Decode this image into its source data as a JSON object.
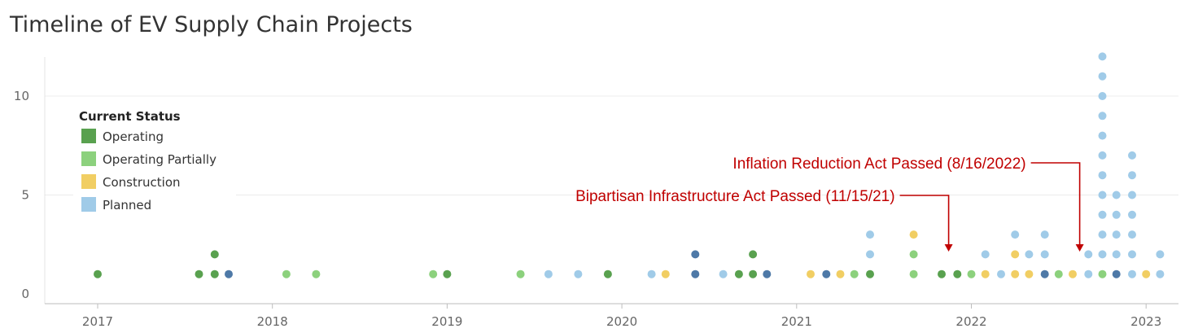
{
  "chart_data": {
    "type": "scatter",
    "title": "Timeline of EV Supply Chain Projects",
    "xlabel": "",
    "ylabel": "",
    "x_range": [
      2016.7,
      2023.2
    ],
    "ylim": [
      0,
      12.5
    ],
    "y_ticks": [
      0,
      5,
      10
    ],
    "x_ticks": [
      "2017",
      "2018",
      "2019",
      "2020",
      "2021",
      "2022",
      "2023"
    ],
    "legend": {
      "title": "Current Status",
      "position": "top-left",
      "entries": [
        {
          "label": "Operating",
          "color": "#59a14f"
        },
        {
          "label": "Operating Partially",
          "color": "#8cd17d"
        },
        {
          "label": "Construction",
          "color": "#f1ce63"
        },
        {
          "label": "Planned",
          "color": "#a0cbe8"
        }
      ]
    },
    "extra_colors": {
      "dark_blue": "#4e79a7"
    },
    "series": [
      {
        "name": "Operating",
        "color": "#59a14f",
        "points": [
          {
            "x": 2017.0,
            "stack": [
              1
            ]
          },
          {
            "x": 2017.58,
            "stack": [
              1
            ]
          },
          {
            "x": 2017.67,
            "stack": [
              1,
              2
            ]
          },
          {
            "x": 2019.0,
            "stack": [
              1
            ]
          },
          {
            "x": 2019.92,
            "stack": [
              1
            ]
          },
          {
            "x": 2020.67,
            "stack": [
              1
            ]
          },
          {
            "x": 2020.75,
            "stack": [
              1,
              2
            ]
          },
          {
            "x": 2021.42,
            "stack": [
              1
            ]
          },
          {
            "x": 2021.83,
            "stack": [
              1
            ]
          },
          {
            "x": 2021.92,
            "stack": [
              1
            ]
          }
        ]
      },
      {
        "name": "Operating Partially",
        "color": "#8cd17d",
        "points": [
          {
            "x": 2018.08,
            "stack": [
              1
            ]
          },
          {
            "x": 2018.25,
            "stack": [
              1
            ]
          },
          {
            "x": 2018.92,
            "stack": [
              1
            ]
          },
          {
            "x": 2019.42,
            "stack": [
              1
            ]
          },
          {
            "x": 2021.33,
            "stack": [
              1
            ]
          },
          {
            "x": 2021.67,
            "stack": [
              1,
              2
            ]
          },
          {
            "x": 2022.0,
            "stack": [
              1
            ]
          },
          {
            "x": 2022.5,
            "stack": [
              1
            ]
          },
          {
            "x": 2022.75,
            "stack": [
              1
            ]
          }
        ]
      },
      {
        "name": "Construction",
        "color": "#f1ce63",
        "points": [
          {
            "x": 2020.25,
            "stack": [
              1
            ]
          },
          {
            "x": 2021.08,
            "stack": [
              1
            ]
          },
          {
            "x": 2021.25,
            "stack": [
              1
            ]
          },
          {
            "x": 2021.67,
            "stack": [
              3
            ]
          },
          {
            "x": 2022.08,
            "stack": [
              1
            ]
          },
          {
            "x": 2022.25,
            "stack": [
              1,
              2
            ]
          },
          {
            "x": 2022.33,
            "stack": [
              1
            ]
          },
          {
            "x": 2022.58,
            "stack": [
              1
            ]
          },
          {
            "x": 2023.0,
            "stack": [
              1
            ]
          }
        ]
      },
      {
        "name": "Planned",
        "color": "#a0cbe8",
        "points": [
          {
            "x": 2019.58,
            "stack": [
              1
            ]
          },
          {
            "x": 2019.75,
            "stack": [
              1
            ]
          },
          {
            "x": 2020.17,
            "stack": [
              1
            ]
          },
          {
            "x": 2020.58,
            "stack": [
              1
            ]
          },
          {
            "x": 2021.42,
            "stack": [
              2,
              3
            ]
          },
          {
            "x": 2022.08,
            "stack": [
              2
            ]
          },
          {
            "x": 2022.17,
            "stack": [
              1
            ]
          },
          {
            "x": 2022.25,
            "stack": [
              3
            ]
          },
          {
            "x": 2022.33,
            "stack": [
              2
            ]
          },
          {
            "x": 2022.42,
            "stack": [
              2,
              3
            ]
          },
          {
            "x": 2022.67,
            "stack": [
              1,
              2
            ]
          },
          {
            "x": 2022.75,
            "stack": [
              2,
              3,
              4,
              5,
              6,
              7,
              8,
              9,
              10,
              11,
              12
            ]
          },
          {
            "x": 2022.83,
            "stack": [
              2,
              3,
              4,
              5
            ]
          },
          {
            "x": 2022.92,
            "stack": [
              1,
              2,
              3,
              4,
              5,
              6,
              7
            ]
          },
          {
            "x": 2023.08,
            "stack": [
              1,
              2
            ]
          }
        ]
      },
      {
        "name": "Planned (dark)",
        "color": "#4e79a7",
        "points": [
          {
            "x": 2017.75,
            "stack": [
              1
            ]
          },
          {
            "x": 2020.42,
            "stack": [
              1,
              2
            ]
          },
          {
            "x": 2020.83,
            "stack": [
              1
            ]
          },
          {
            "x": 2021.17,
            "stack": [
              1
            ]
          },
          {
            "x": 2022.42,
            "stack": [
              1
            ]
          },
          {
            "x": 2022.83,
            "stack": [
              1
            ]
          }
        ]
      }
    ],
    "annotations": [
      {
        "text": "Inflation Reduction Act Passed (8/16/2022)",
        "x": 2022.62,
        "y": 2.3,
        "color": "#c00000"
      },
      {
        "text": "Bipartisan Infrastructure Act Passed (11/15/21)",
        "x": 2021.87,
        "y": 2.3,
        "color": "#c00000"
      }
    ]
  }
}
